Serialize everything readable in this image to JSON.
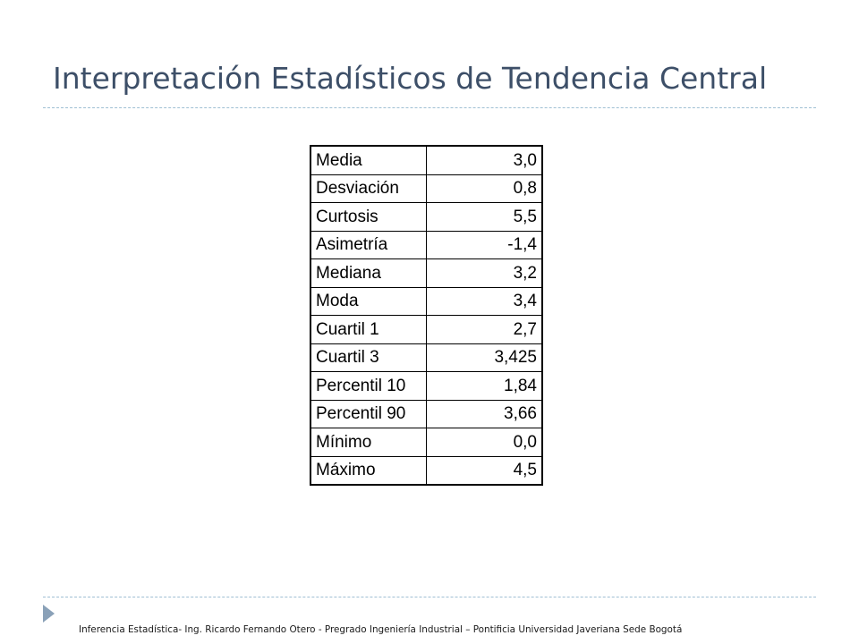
{
  "slide": {
    "title": "Interpretación Estadísticos de Tendencia Central",
    "footer": "Inferencia Estadística- Ing. Ricardo Fernando Otero - Pregrado Ingeniería Industrial – Pontificia Universidad Javeriana Sede Bogotá"
  },
  "table": {
    "rows": [
      {
        "label": "Media",
        "value": "3,0"
      },
      {
        "label": "Desviación",
        "value": "0,8"
      },
      {
        "label": "Curtosis",
        "value": "5,5"
      },
      {
        "label": "Asimetría",
        "value": "-1,4"
      },
      {
        "label": "Mediana",
        "value": "3,2"
      },
      {
        "label": "Moda",
        "value": "3,4"
      },
      {
        "label": "Cuartil 1",
        "value": "2,7"
      },
      {
        "label": "Cuartil 3",
        "value": "3,425"
      },
      {
        "label": "Percentil 10",
        "value": "1,84"
      },
      {
        "label": "Percentil 90",
        "value": "3,66"
      },
      {
        "label": "Mínimo",
        "value": "0,0"
      },
      {
        "label": "Máximo",
        "value": "4,5"
      }
    ]
  },
  "colors": {
    "title": "#3d4f68",
    "rule": "#9fbfd3",
    "bullet": "#8aa1b8"
  },
  "icons": {
    "footer_bullet": "triangle-right-icon"
  }
}
